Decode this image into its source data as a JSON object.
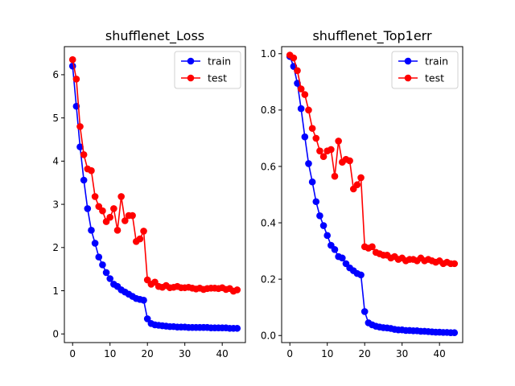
{
  "figure": {
    "background": "#ffffff"
  },
  "chart_data": [
    {
      "type": "line",
      "title": "shufflenet_Loss",
      "xlabel": "",
      "ylabel": "",
      "xlim": [
        -2.2,
        46.2
      ],
      "ylim": [
        -0.2,
        6.65
      ],
      "xticks": [
        0,
        10,
        20,
        30,
        40
      ],
      "yticks": [
        0,
        1,
        2,
        3,
        4,
        5,
        6
      ],
      "grid": false,
      "legend": "top-right",
      "series": [
        {
          "name": "train",
          "color": "#0000ff",
          "marker": "circle",
          "x": [
            0,
            1,
            2,
            3,
            4,
            5,
            6,
            7,
            8,
            9,
            10,
            11,
            12,
            13,
            14,
            15,
            16,
            17,
            18,
            19,
            20,
            21,
            22,
            23,
            24,
            25,
            26,
            27,
            28,
            29,
            30,
            31,
            32,
            33,
            34,
            35,
            36,
            37,
            38,
            39,
            40,
            41,
            42,
            43,
            44
          ],
          "values": [
            6.2,
            5.27,
            4.33,
            3.56,
            2.9,
            2.4,
            2.1,
            1.78,
            1.6,
            1.42,
            1.28,
            1.15,
            1.1,
            1.02,
            0.97,
            0.92,
            0.87,
            0.82,
            0.8,
            0.78,
            0.35,
            0.24,
            0.21,
            0.2,
            0.19,
            0.18,
            0.17,
            0.17,
            0.16,
            0.16,
            0.16,
            0.15,
            0.15,
            0.15,
            0.15,
            0.15,
            0.15,
            0.14,
            0.14,
            0.14,
            0.14,
            0.14,
            0.13,
            0.13,
            0.13
          ]
        },
        {
          "name": "test",
          "color": "#ff0000",
          "marker": "circle",
          "x": [
            0,
            1,
            2,
            3,
            4,
            5,
            6,
            7,
            8,
            9,
            10,
            11,
            12,
            13,
            14,
            15,
            16,
            17,
            18,
            19,
            20,
            21,
            22,
            23,
            24,
            25,
            26,
            27,
            28,
            29,
            30,
            31,
            32,
            33,
            34,
            35,
            36,
            37,
            38,
            39,
            40,
            41,
            42,
            43,
            44
          ],
          "values": [
            6.35,
            5.9,
            4.8,
            4.15,
            3.82,
            3.78,
            3.18,
            2.95,
            2.85,
            2.6,
            2.7,
            2.9,
            2.4,
            3.18,
            2.62,
            2.74,
            2.74,
            2.14,
            2.2,
            2.38,
            1.25,
            1.15,
            1.2,
            1.1,
            1.08,
            1.12,
            1.07,
            1.08,
            1.1,
            1.07,
            1.07,
            1.08,
            1.06,
            1.04,
            1.06,
            1.03,
            1.05,
            1.06,
            1.06,
            1.05,
            1.07,
            1.03,
            1.05,
            0.99,
            1.02
          ]
        }
      ]
    },
    {
      "type": "line",
      "title": "shufflenet_Top1err",
      "xlabel": "",
      "ylabel": "",
      "xlim": [
        -2.2,
        46.2
      ],
      "ylim": [
        -0.025,
        1.025
      ],
      "xticks": [
        0,
        10,
        20,
        30,
        40
      ],
      "yticks": [
        0.0,
        0.2,
        0.4,
        0.6,
        0.8,
        1.0
      ],
      "ytick_labels": [
        "0.0",
        "0.2",
        "0.4",
        "0.6",
        "0.8",
        "1.0"
      ],
      "grid": false,
      "legend": "top-right",
      "series": [
        {
          "name": "train",
          "color": "#0000ff",
          "marker": "circle",
          "x": [
            0,
            1,
            2,
            3,
            4,
            5,
            6,
            7,
            8,
            9,
            10,
            11,
            12,
            13,
            14,
            15,
            16,
            17,
            18,
            19,
            20,
            21,
            22,
            23,
            24,
            25,
            26,
            27,
            28,
            29,
            30,
            31,
            32,
            33,
            34,
            35,
            36,
            37,
            38,
            39,
            40,
            41,
            42,
            43,
            44
          ],
          "values": [
            0.99,
            0.955,
            0.895,
            0.805,
            0.705,
            0.61,
            0.545,
            0.475,
            0.425,
            0.39,
            0.355,
            0.32,
            0.305,
            0.28,
            0.275,
            0.255,
            0.24,
            0.23,
            0.22,
            0.215,
            0.085,
            0.045,
            0.038,
            0.033,
            0.03,
            0.028,
            0.027,
            0.025,
            0.022,
            0.02,
            0.02,
            0.018,
            0.018,
            0.017,
            0.017,
            0.015,
            0.015,
            0.014,
            0.013,
            0.012,
            0.012,
            0.011,
            0.011,
            0.01,
            0.01
          ]
        },
        {
          "name": "test",
          "color": "#ff0000",
          "marker": "circle",
          "x": [
            0,
            1,
            2,
            3,
            4,
            5,
            6,
            7,
            8,
            9,
            10,
            11,
            12,
            13,
            14,
            15,
            16,
            17,
            18,
            19,
            20,
            21,
            22,
            23,
            24,
            25,
            26,
            27,
            28,
            29,
            30,
            31,
            32,
            33,
            34,
            35,
            36,
            37,
            38,
            39,
            40,
            41,
            42,
            43,
            44
          ],
          "values": [
            0.995,
            0.985,
            0.94,
            0.875,
            0.855,
            0.8,
            0.735,
            0.7,
            0.655,
            0.635,
            0.655,
            0.66,
            0.565,
            0.69,
            0.615,
            0.625,
            0.62,
            0.52,
            0.535,
            0.56,
            0.315,
            0.31,
            0.315,
            0.295,
            0.29,
            0.285,
            0.285,
            0.275,
            0.28,
            0.27,
            0.275,
            0.265,
            0.27,
            0.27,
            0.265,
            0.275,
            0.265,
            0.27,
            0.265,
            0.26,
            0.265,
            0.255,
            0.26,
            0.255,
            0.255
          ]
        }
      ]
    }
  ]
}
